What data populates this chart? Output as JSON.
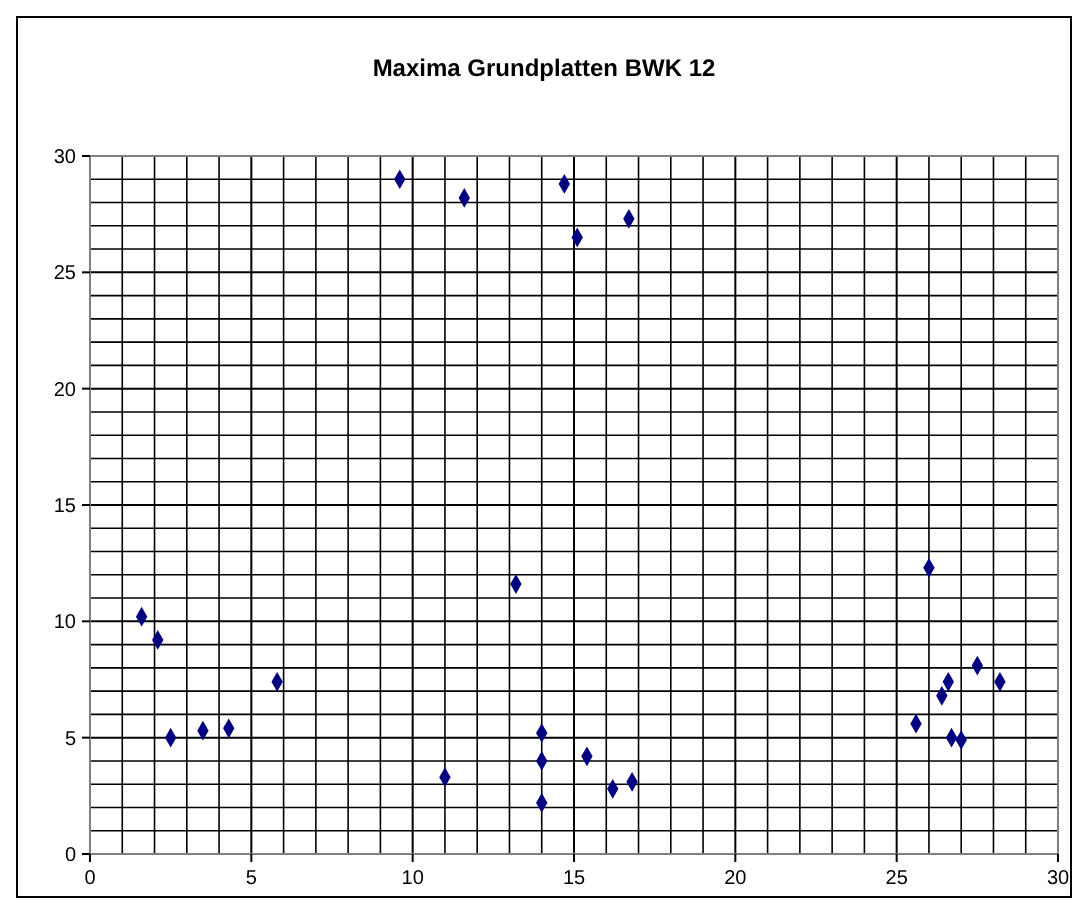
{
  "chart_data": {
    "type": "scatter",
    "title": "Maxima Grundplatten BWK 12",
    "marker": "diamond",
    "grid": true,
    "xlim": [
      0,
      30
    ],
    "ylim": [
      0,
      30
    ],
    "xticks": [
      0,
      {
        "value": 1,
        "label": null
      },
      {
        "value": 2,
        "label": null
      },
      {
        "value": 3,
        "label": null
      },
      {
        "value": 4,
        "label": null
      },
      5,
      {
        "value": 6,
        "label": null
      },
      {
        "value": 7,
        "label": null
      },
      {
        "value": 8,
        "label": null
      },
      {
        "value": 9,
        "label": null
      },
      10,
      {
        "value": 11,
        "label": null
      },
      {
        "value": 12,
        "label": null
      },
      {
        "value": 13,
        "label": null
      },
      {
        "value": 14,
        "label": null
      },
      15,
      {
        "value": 16,
        "label": null
      },
      {
        "value": 17,
        "label": null
      },
      {
        "value": 18,
        "label": null
      },
      {
        "value": 19,
        "label": null
      },
      20,
      {
        "value": 21,
        "label": null
      },
      {
        "value": 22,
        "label": null
      },
      {
        "value": 23,
        "label": null
      },
      {
        "value": 24,
        "label": null
      },
      25,
      {
        "value": 26,
        "label": null
      },
      {
        "value": 27,
        "label": null
      },
      {
        "value": 28,
        "label": null
      },
      {
        "value": 29,
        "label": null
      },
      30
    ],
    "yticks": [
      0,
      {
        "value": 1,
        "label": null
      },
      {
        "value": 2,
        "label": null
      },
      {
        "value": 3,
        "label": null
      },
      {
        "value": 4,
        "label": null
      },
      5,
      {
        "value": 6,
        "label": null
      },
      {
        "value": 7,
        "label": null
      },
      {
        "value": 8,
        "label": null
      },
      {
        "value": 9,
        "label": null
      },
      10,
      {
        "value": 11,
        "label": null
      },
      {
        "value": 12,
        "label": null
      },
      {
        "value": 13,
        "label": null
      },
      {
        "value": 14,
        "label": null
      },
      15,
      {
        "value": 16,
        "label": null
      },
      {
        "value": 17,
        "label": null
      },
      {
        "value": 18,
        "label": null
      },
      {
        "value": 19,
        "label": null
      },
      20,
      {
        "value": 21,
        "label": null
      },
      {
        "value": 22,
        "label": null
      },
      {
        "value": 23,
        "label": null
      },
      {
        "value": 24,
        "label": null
      },
      25,
      {
        "value": 26,
        "label": null
      },
      {
        "value": 27,
        "label": null
      },
      {
        "value": 28,
        "label": null
      },
      {
        "value": 29,
        "label": null
      },
      30
    ],
    "series": [
      {
        "color": "#000080",
        "x": [
          1.6,
          2.1,
          2.5,
          3.5,
          4.3,
          5.8,
          9.6,
          11.6,
          11.0,
          14.7,
          15.1,
          16.7,
          13.2,
          14.0,
          14.0,
          14.0,
          15.4,
          16.2,
          16.8,
          26.0,
          25.6,
          26.4,
          26.6,
          26.7,
          27.0,
          27.5,
          28.2
        ],
        "values": [
          10.2,
          9.2,
          5.0,
          5.3,
          5.4,
          7.4,
          29.0,
          28.2,
          3.3,
          28.8,
          26.5,
          27.3,
          11.6,
          5.2,
          4.0,
          2.2,
          4.2,
          2.8,
          3.1,
          12.3,
          5.6,
          6.8,
          7.4,
          5.0,
          4.9,
          8.1,
          7.4
        ]
      }
    ]
  }
}
